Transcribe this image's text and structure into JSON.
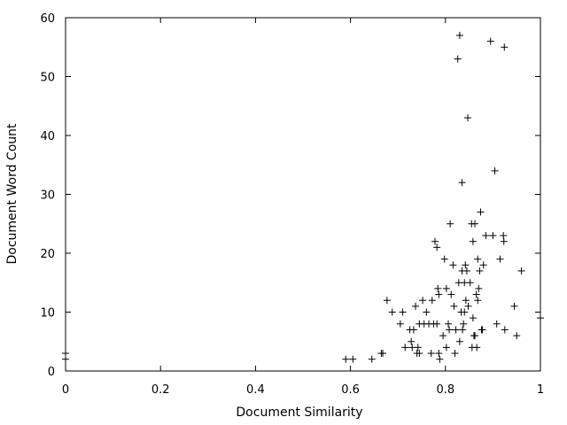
{
  "chart_data": {
    "type": "scatter",
    "title": "",
    "xlabel": "Document Similarity",
    "ylabel": "Document Word Count",
    "xlim": [
      0,
      1
    ],
    "ylim": [
      0,
      60
    ],
    "xticks": [
      "0",
      "0.2",
      "0.4",
      "0.6",
      "0.8",
      "1"
    ],
    "yticks": [
      "0",
      "10",
      "20",
      "30",
      "40",
      "50",
      "60"
    ],
    "grid": false,
    "marker": "plus",
    "color": "#000000",
    "points": [
      [
        0.0,
        3
      ],
      [
        0.0,
        2
      ],
      [
        0.59,
        2
      ],
      [
        0.605,
        2
      ],
      [
        0.645,
        2
      ],
      [
        0.665,
        3
      ],
      [
        0.668,
        3
      ],
      [
        0.677,
        12
      ],
      [
        0.688,
        10
      ],
      [
        0.705,
        8
      ],
      [
        0.71,
        10
      ],
      [
        0.715,
        4
      ],
      [
        0.725,
        7
      ],
      [
        0.728,
        5
      ],
      [
        0.73,
        4
      ],
      [
        0.733,
        7
      ],
      [
        0.737,
        11
      ],
      [
        0.74,
        3
      ],
      [
        0.742,
        4
      ],
      [
        0.745,
        3
      ],
      [
        0.745,
        8
      ],
      [
        0.752,
        12
      ],
      [
        0.755,
        8
      ],
      [
        0.76,
        10
      ],
      [
        0.765,
        8
      ],
      [
        0.77,
        3
      ],
      [
        0.772,
        12
      ],
      [
        0.775,
        8
      ],
      [
        0.778,
        22
      ],
      [
        0.782,
        21
      ],
      [
        0.782,
        8
      ],
      [
        0.784,
        14
      ],
      [
        0.786,
        13
      ],
      [
        0.786,
        3
      ],
      [
        0.788,
        2
      ],
      [
        0.795,
        6
      ],
      [
        0.798,
        19
      ],
      [
        0.802,
        14
      ],
      [
        0.802,
        4
      ],
      [
        0.806,
        8
      ],
      [
        0.808,
        7
      ],
      [
        0.81,
        25
      ],
      [
        0.812,
        13
      ],
      [
        0.816,
        18
      ],
      [
        0.818,
        11
      ],
      [
        0.82,
        3
      ],
      [
        0.822,
        7
      ],
      [
        0.826,
        53
      ],
      [
        0.828,
        15
      ],
      [
        0.83,
        57
      ],
      [
        0.83,
        5
      ],
      [
        0.833,
        10
      ],
      [
        0.835,
        17
      ],
      [
        0.835,
        32
      ],
      [
        0.836,
        7
      ],
      [
        0.838,
        8
      ],
      [
        0.84,
        15
      ],
      [
        0.84,
        10
      ],
      [
        0.842,
        18
      ],
      [
        0.843,
        12
      ],
      [
        0.845,
        17
      ],
      [
        0.847,
        43
      ],
      [
        0.848,
        11
      ],
      [
        0.852,
        15
      ],
      [
        0.855,
        25
      ],
      [
        0.856,
        4
      ],
      [
        0.858,
        22
      ],
      [
        0.858,
        9
      ],
      [
        0.86,
        6
      ],
      [
        0.862,
        25
      ],
      [
        0.862,
        6
      ],
      [
        0.865,
        13
      ],
      [
        0.866,
        4
      ],
      [
        0.868,
        19
      ],
      [
        0.868,
        12
      ],
      [
        0.87,
        14
      ],
      [
        0.872,
        17
      ],
      [
        0.874,
        27
      ],
      [
        0.876,
        7
      ],
      [
        0.878,
        7
      ],
      [
        0.88,
        18
      ],
      [
        0.885,
        23
      ],
      [
        0.895,
        56
      ],
      [
        0.9,
        23
      ],
      [
        0.904,
        34
      ],
      [
        0.908,
        8
      ],
      [
        0.915,
        19
      ],
      [
        0.922,
        23
      ],
      [
        0.923,
        22
      ],
      [
        0.924,
        55
      ],
      [
        0.925,
        7
      ],
      [
        0.945,
        11
      ],
      [
        0.95,
        6
      ],
      [
        0.96,
        17
      ],
      [
        1.0,
        9
      ]
    ]
  }
}
